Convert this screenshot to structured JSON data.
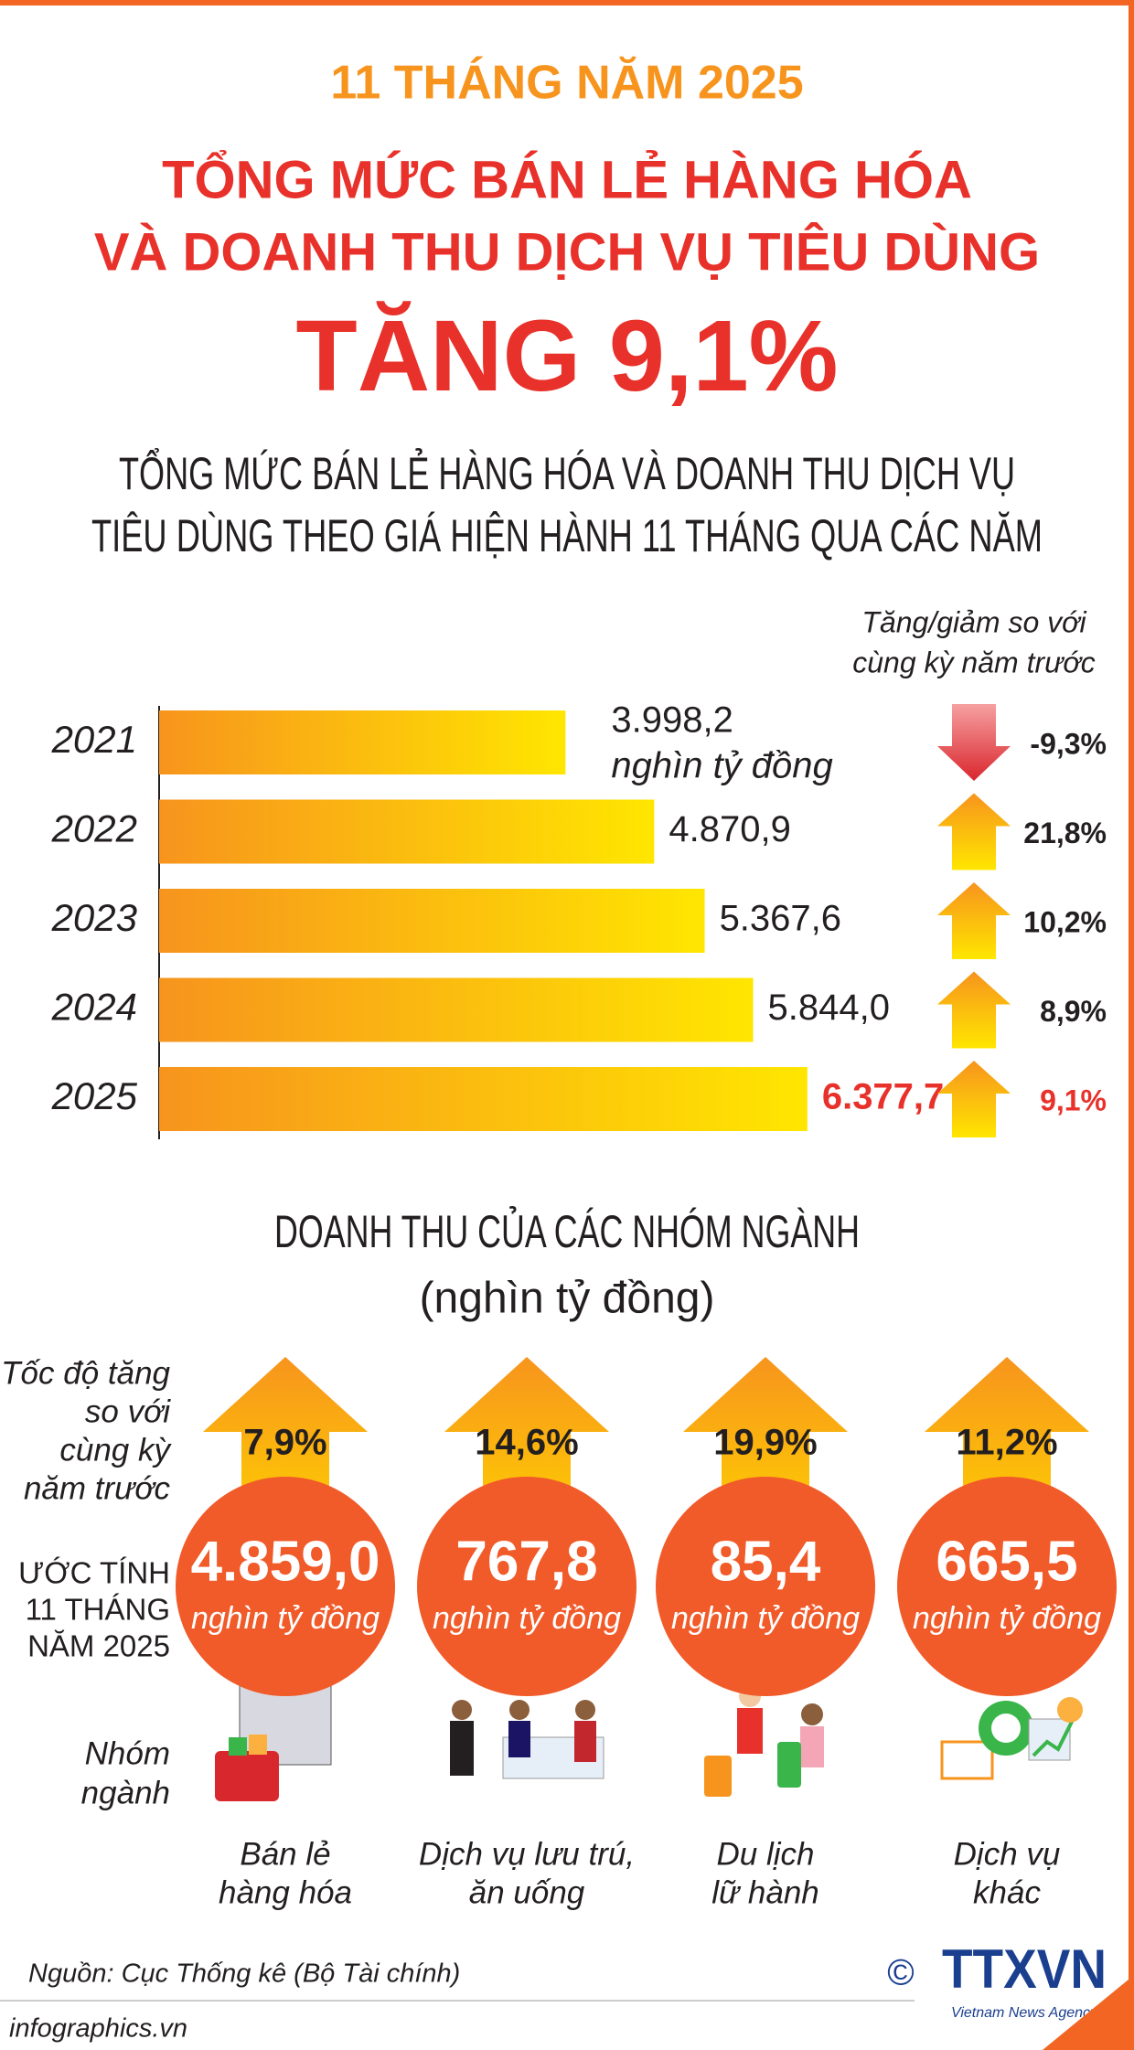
{
  "header": {
    "period": "11 THÁNG NĂM 2025",
    "title": [
      "TỔNG MỨC BÁN LẺ HÀNG HÓA",
      "VÀ DOANH THU DỊCH VỤ TIÊU DÙNG"
    ],
    "headline": "TĂNG 9,1%"
  },
  "chart_data": {
    "type": "bar",
    "orientation": "horizontal",
    "title": [
      "TỔNG MỨC BÁN LẺ HÀNG HÓA VÀ DOANH THU DỊCH VỤ",
      "TIÊU DÙNG THEO GIÁ HIỆN HÀNH 11 THÁNG QUA CÁC NĂM"
    ],
    "categories": [
      "2021",
      "2022",
      "2023",
      "2024",
      "2025"
    ],
    "values": [
      3998.2,
      4870.9,
      5367.6,
      5844.0,
      6377.7
    ],
    "value_labels": [
      "3.998,2",
      "4.870,9",
      "5.367,6",
      "5.844,0",
      "6.377,7"
    ],
    "value_label_colors": [
      "#231f20",
      "#231f20",
      "#231f20",
      "#231f20",
      "#e8312a"
    ],
    "unit": "nghìn tỷ đồng",
    "color": [
      "#f7941d",
      "#ffe600"
    ],
    "xlim": [
      0,
      7000
    ],
    "change": {
      "title": [
        "Tăng/giảm so với",
        "cùng kỳ năm trước"
      ],
      "values": [
        -9.3,
        21.8,
        10.2,
        8.9,
        9.1
      ],
      "value_labels": [
        "-9,3%",
        "21,8%",
        "10,2%",
        "8,9%",
        "9,1%"
      ],
      "label_colors": [
        "#231f20",
        "#231f20",
        "#231f20",
        "#231f20",
        "#e8312a"
      ],
      "up_color": [
        "#f7941d",
        "#ffe600"
      ],
      "down_color": [
        "#f6a0a0",
        "#d9272e"
      ]
    }
  },
  "groups": {
    "title": "DOANH THU CỦA CÁC NHÓM NGÀNH",
    "subtitle": "(nghìn tỷ đồng)",
    "row_labels": {
      "growth": [
        "Tốc độ tăng",
        "so với",
        "cùng kỳ",
        "năm trước"
      ],
      "estimate": [
        "ƯỚC TÍNH",
        "11 THÁNG",
        "NĂM 2025"
      ],
      "sector": [
        "Nhóm",
        "ngành"
      ]
    },
    "items": [
      {
        "growth": "7,9%",
        "value": "4.859,0",
        "unit": "nghìn tỷ đồng",
        "name": [
          "Bán lẻ",
          "hàng hóa"
        ]
      },
      {
        "growth": "14,6%",
        "value": "767,8",
        "unit": "nghìn tỷ đồng",
        "name": [
          "Dịch vụ lưu trú,",
          "ăn uống"
        ]
      },
      {
        "growth": "19,9%",
        "value": "85,4",
        "unit": "nghìn tỷ đồng",
        "name": [
          "Du lịch",
          "lữ hành"
        ]
      },
      {
        "growth": "11,2%",
        "value": "665,5",
        "unit": "nghìn tỷ đồng",
        "name": [
          "Dịch vụ",
          "khác"
        ]
      }
    ]
  },
  "footer": {
    "source": "Nguồn: Cục Thống kê (Bộ Tài chính)",
    "site": "infographics.vn",
    "copyright": "©",
    "logo": "TTXVN",
    "agency": "Vietnam News Agency"
  }
}
